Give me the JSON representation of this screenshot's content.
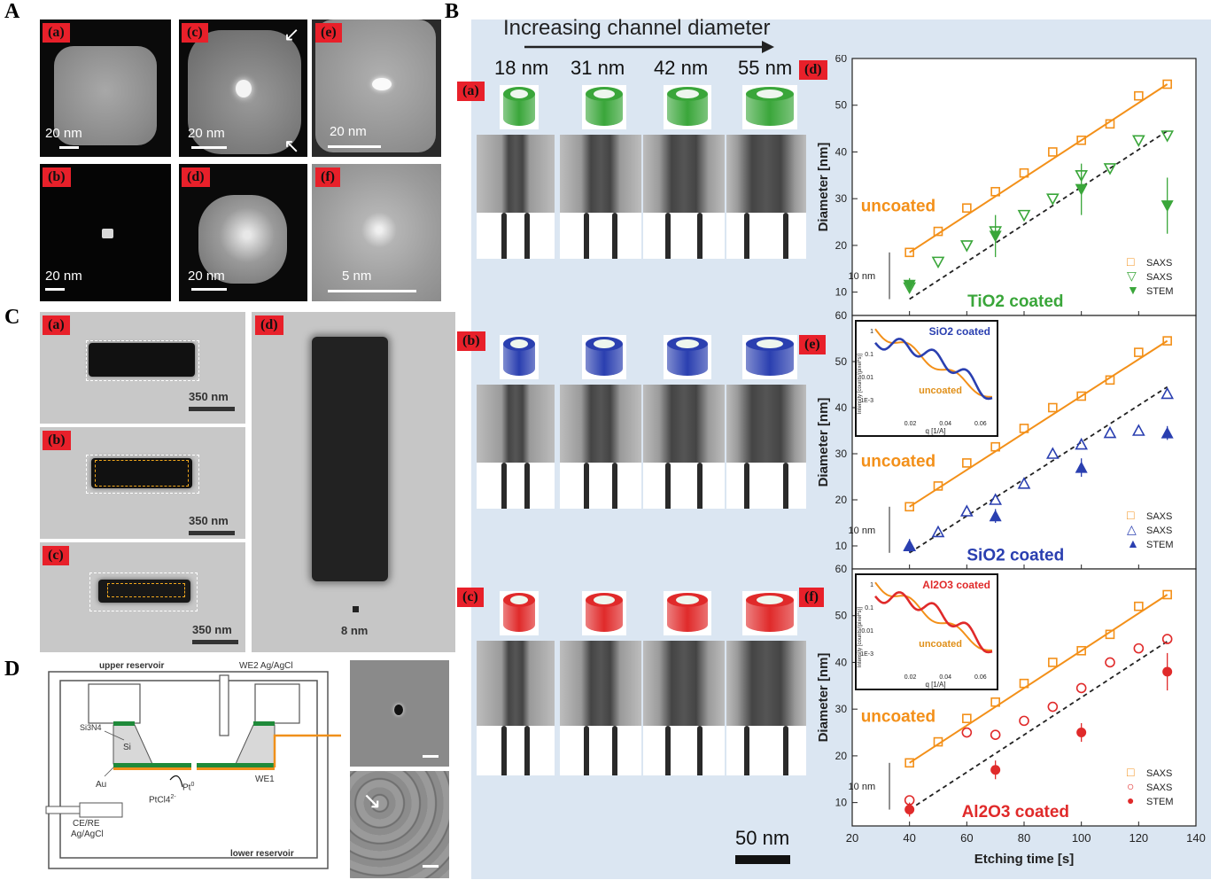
{
  "panel_letters": {
    "A": "A",
    "B": "B",
    "C": "C",
    "D": "D"
  },
  "panelA": {
    "tags": [
      "(a)",
      "(b)",
      "(c)",
      "(d)",
      "(e)",
      "(f)"
    ],
    "scales": [
      "20 nm",
      "20 nm",
      "20 nm",
      "20 nm",
      "20 nm",
      "5 nm"
    ]
  },
  "panelB": {
    "header": "Increasing channel diameter",
    "diameters": [
      "18 nm",
      "31 nm",
      "42 nm",
      "55 nm"
    ],
    "row_tags": [
      "(a)",
      "(b)",
      "(c)"
    ],
    "plot_tags": [
      "(d)",
      "(e)",
      "(f)"
    ],
    "scale": "50 nm",
    "colors": {
      "tio2": "#3aa63a",
      "sio2": "#2a3fb0",
      "al2o3": "#e02a2a",
      "saxs_uncoated": "#f39019",
      "bg": "#dbe6f2"
    }
  },
  "panelC": {
    "tags": [
      "(a)",
      "(b)",
      "(c)",
      "(d)"
    ],
    "scales": [
      "350 nm",
      "350 nm",
      "350 nm",
      "8 nm"
    ]
  },
  "panelD": {
    "upper": "upper reservoir",
    "lower": "lower reservoir",
    "we2": "WE2 Ag/AgCl",
    "we1": "WE1",
    "si3n4": "Si3N4",
    "si": "Si",
    "au": "Au",
    "pt_reaction_left": "PtCl4",
    "pt_reaction_charge": "2-",
    "pt_product": "Pt",
    "pt_product_sup": "0",
    "cere": "CE/RE",
    "agcl": "Ag/AgCl"
  },
  "chart_data": [
    {
      "type": "scatter",
      "panel": "(d)",
      "xlabel": "",
      "ylabel": "Diameter [nm]",
      "xlim": [
        20,
        140
      ],
      "ylim": [
        5,
        60
      ],
      "yticks": [
        10,
        20,
        30,
        40,
        50,
        60
      ],
      "annotations": [
        "uncoated",
        "TiO2 coated",
        "10 nm"
      ],
      "legend": [
        "SAXS",
        "SAXS",
        "STEM"
      ],
      "series": [
        {
          "name": "SAXS",
          "marker": "open-square",
          "color": "#f39019",
          "x": [
            40,
            50,
            60,
            70,
            80,
            90,
            100,
            110,
            120,
            130
          ],
          "y": [
            18.5,
            23,
            28,
            31.5,
            35.5,
            40,
            42.5,
            46,
            52,
            54.5
          ]
        },
        {
          "name": "SAXS",
          "marker": "open-triangle-down",
          "color": "#3aa63a",
          "x": [
            40,
            50,
            60,
            70,
            80,
            90,
            100,
            110,
            120,
            130
          ],
          "y": [
            11,
            16.5,
            20,
            23,
            26.5,
            30,
            35,
            36.5,
            42.5,
            43.5
          ]
        },
        {
          "name": "STEM",
          "marker": "filled-triangle-down",
          "color": "#3aa63a",
          "x": [
            40,
            70,
            100,
            130
          ],
          "y": [
            11.5,
            22,
            32,
            28.5
          ],
          "err": [
            1.5,
            4.5,
            5.5,
            6
          ]
        }
      ]
    },
    {
      "type": "scatter",
      "panel": "(e)",
      "xlabel": "",
      "ylabel": "Diameter [nm]",
      "xlim": [
        20,
        140
      ],
      "ylim": [
        5,
        60
      ],
      "yticks": [
        10,
        20,
        30,
        40,
        50,
        60
      ],
      "annotations": [
        "uncoated",
        "SiO2 coated",
        "10 nm"
      ],
      "legend": [
        "SAXS",
        "SAXS",
        "STEM"
      ],
      "inset": {
        "title": "SiO2 coated",
        "label2": "uncoated",
        "xlabel": "q [1/A]",
        "ylabel": "Intensity [counts/(pixel*s)]",
        "xticks": [
          "0.02",
          "0.04",
          "0.06"
        ],
        "yticks": [
          "1",
          "0.1",
          "0.01",
          "1E-3"
        ]
      },
      "series": [
        {
          "name": "SAXS",
          "marker": "open-square",
          "color": "#f39019",
          "x": [
            40,
            50,
            60,
            70,
            80,
            90,
            100,
            110,
            120,
            130
          ],
          "y": [
            18.5,
            23,
            28,
            31.5,
            35.5,
            40,
            42.5,
            46,
            52,
            54.5
          ]
        },
        {
          "name": "SAXS",
          "marker": "open-triangle-up",
          "color": "#2a3fb0",
          "x": [
            40,
            50,
            60,
            70,
            80,
            90,
            100,
            110,
            120,
            130
          ],
          "y": [
            10,
            13,
            17.5,
            20,
            23.5,
            30,
            32,
            34.5,
            35,
            43
          ]
        },
        {
          "name": "STEM",
          "marker": "filled-triangle-up",
          "color": "#2a3fb0",
          "x": [
            40,
            70,
            100,
            130
          ],
          "y": [
            10,
            16.5,
            27,
            34.5
          ],
          "err": [
            1.5,
            1.5,
            2,
            1.5
          ]
        }
      ]
    },
    {
      "type": "scatter",
      "panel": "(f)",
      "xlabel": "Etching time [s]",
      "ylabel": "Diameter [nm]",
      "xlim": [
        20,
        140
      ],
      "ylim": [
        5,
        60
      ],
      "xticks": [
        20,
        40,
        60,
        80,
        100,
        120,
        140
      ],
      "yticks": [
        10,
        20,
        30,
        40,
        50,
        60
      ],
      "annotations": [
        "uncoated",
        "Al2O3 coated",
        "10 nm"
      ],
      "legend": [
        "SAXS",
        "SAXS",
        "STEM"
      ],
      "inset": {
        "title": "Al2O3 coated",
        "label2": "uncoated",
        "xlabel": "q [1/A]",
        "ylabel": "Intensity [counts/(pixel*s)]",
        "xticks": [
          "0.02",
          "0.04",
          "0.06"
        ],
        "yticks": [
          "1",
          "0.1",
          "0.01",
          "1E-3"
        ]
      },
      "series": [
        {
          "name": "SAXS",
          "marker": "open-square",
          "color": "#f39019",
          "x": [
            40,
            50,
            60,
            70,
            80,
            90,
            100,
            110,
            120,
            130
          ],
          "y": [
            18.5,
            23,
            28,
            31.5,
            35.5,
            40,
            42.5,
            46,
            52,
            54.5
          ]
        },
        {
          "name": "SAXS",
          "marker": "open-circle",
          "color": "#e02a2a",
          "x": [
            40,
            60,
            70,
            80,
            90,
            100,
            110,
            120,
            130
          ],
          "y": [
            10.5,
            25,
            24.5,
            27.5,
            30.5,
            34.5,
            40,
            43,
            45
          ]
        },
        {
          "name": "STEM",
          "marker": "filled-circle",
          "color": "#e02a2a",
          "x": [
            40,
            70,
            100,
            130
          ],
          "y": [
            8.5,
            17,
            25,
            38
          ],
          "err": [
            1.5,
            2,
            2,
            4
          ]
        }
      ]
    }
  ]
}
